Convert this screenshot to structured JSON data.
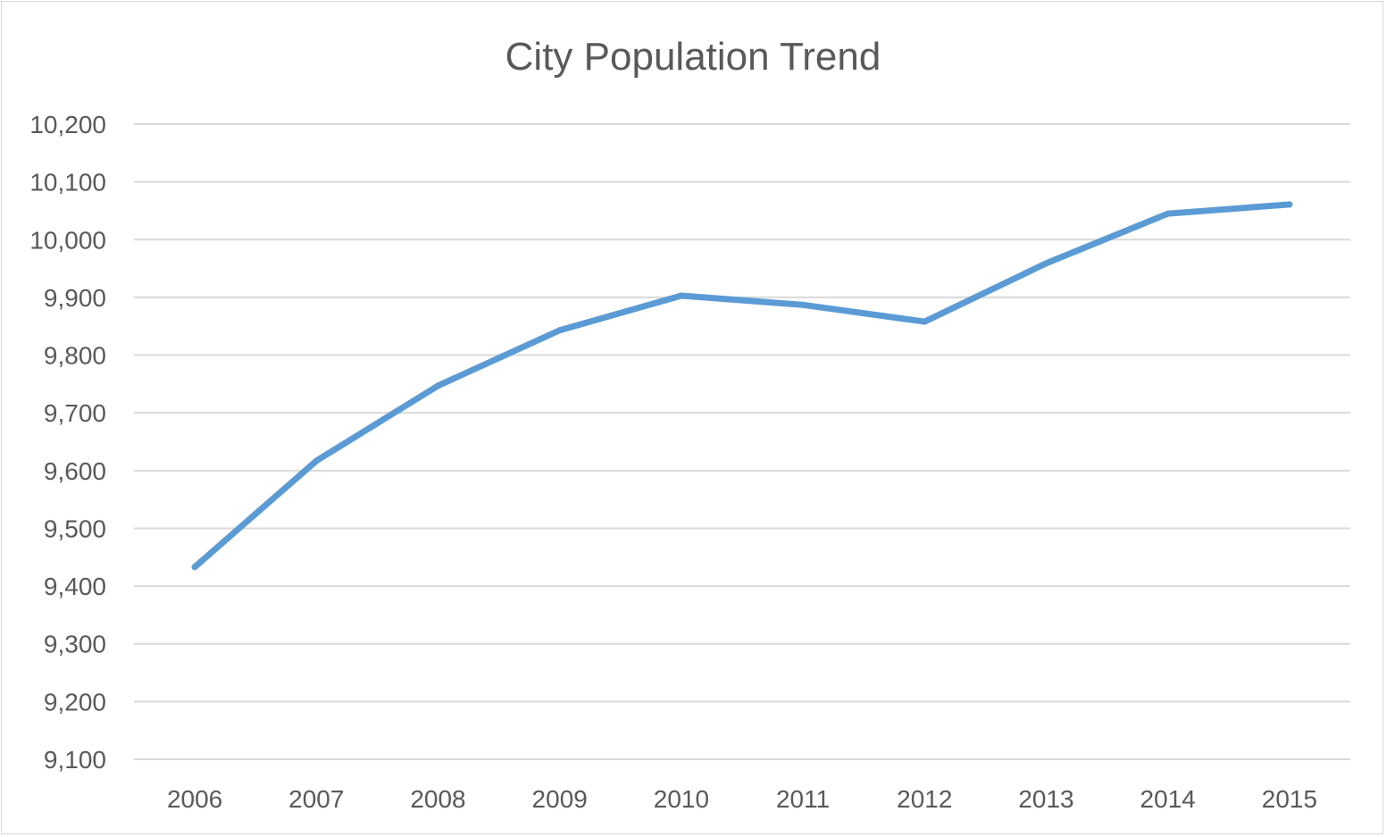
{
  "chart_data": {
    "type": "line",
    "title": "City Population Trend",
    "xlabel": "",
    "ylabel": "",
    "categories": [
      "2006",
      "2007",
      "2008",
      "2009",
      "2010",
      "2011",
      "2012",
      "2013",
      "2014",
      "2015"
    ],
    "series": [
      {
        "values": [
          9433,
          9617,
          9747,
          9843,
          9903,
          9887,
          9858,
          9959,
          10045,
          10061
        ],
        "color": "#5b9bd5"
      }
    ],
    "ylim": [
      9100,
      10200
    ],
    "yticks": [
      9100,
      9200,
      9300,
      9400,
      9500,
      9600,
      9700,
      9800,
      9900,
      10000,
      10100,
      10200
    ],
    "ytick_labels": [
      "9,100",
      "9,200",
      "9,300",
      "9,400",
      "9,500",
      "9,600",
      "9,700",
      "9,800",
      "9,900",
      "10,000",
      "10,100",
      "10,200"
    ],
    "grid": true,
    "gridline_color": "#d9d9d9",
    "legend": "none"
  }
}
